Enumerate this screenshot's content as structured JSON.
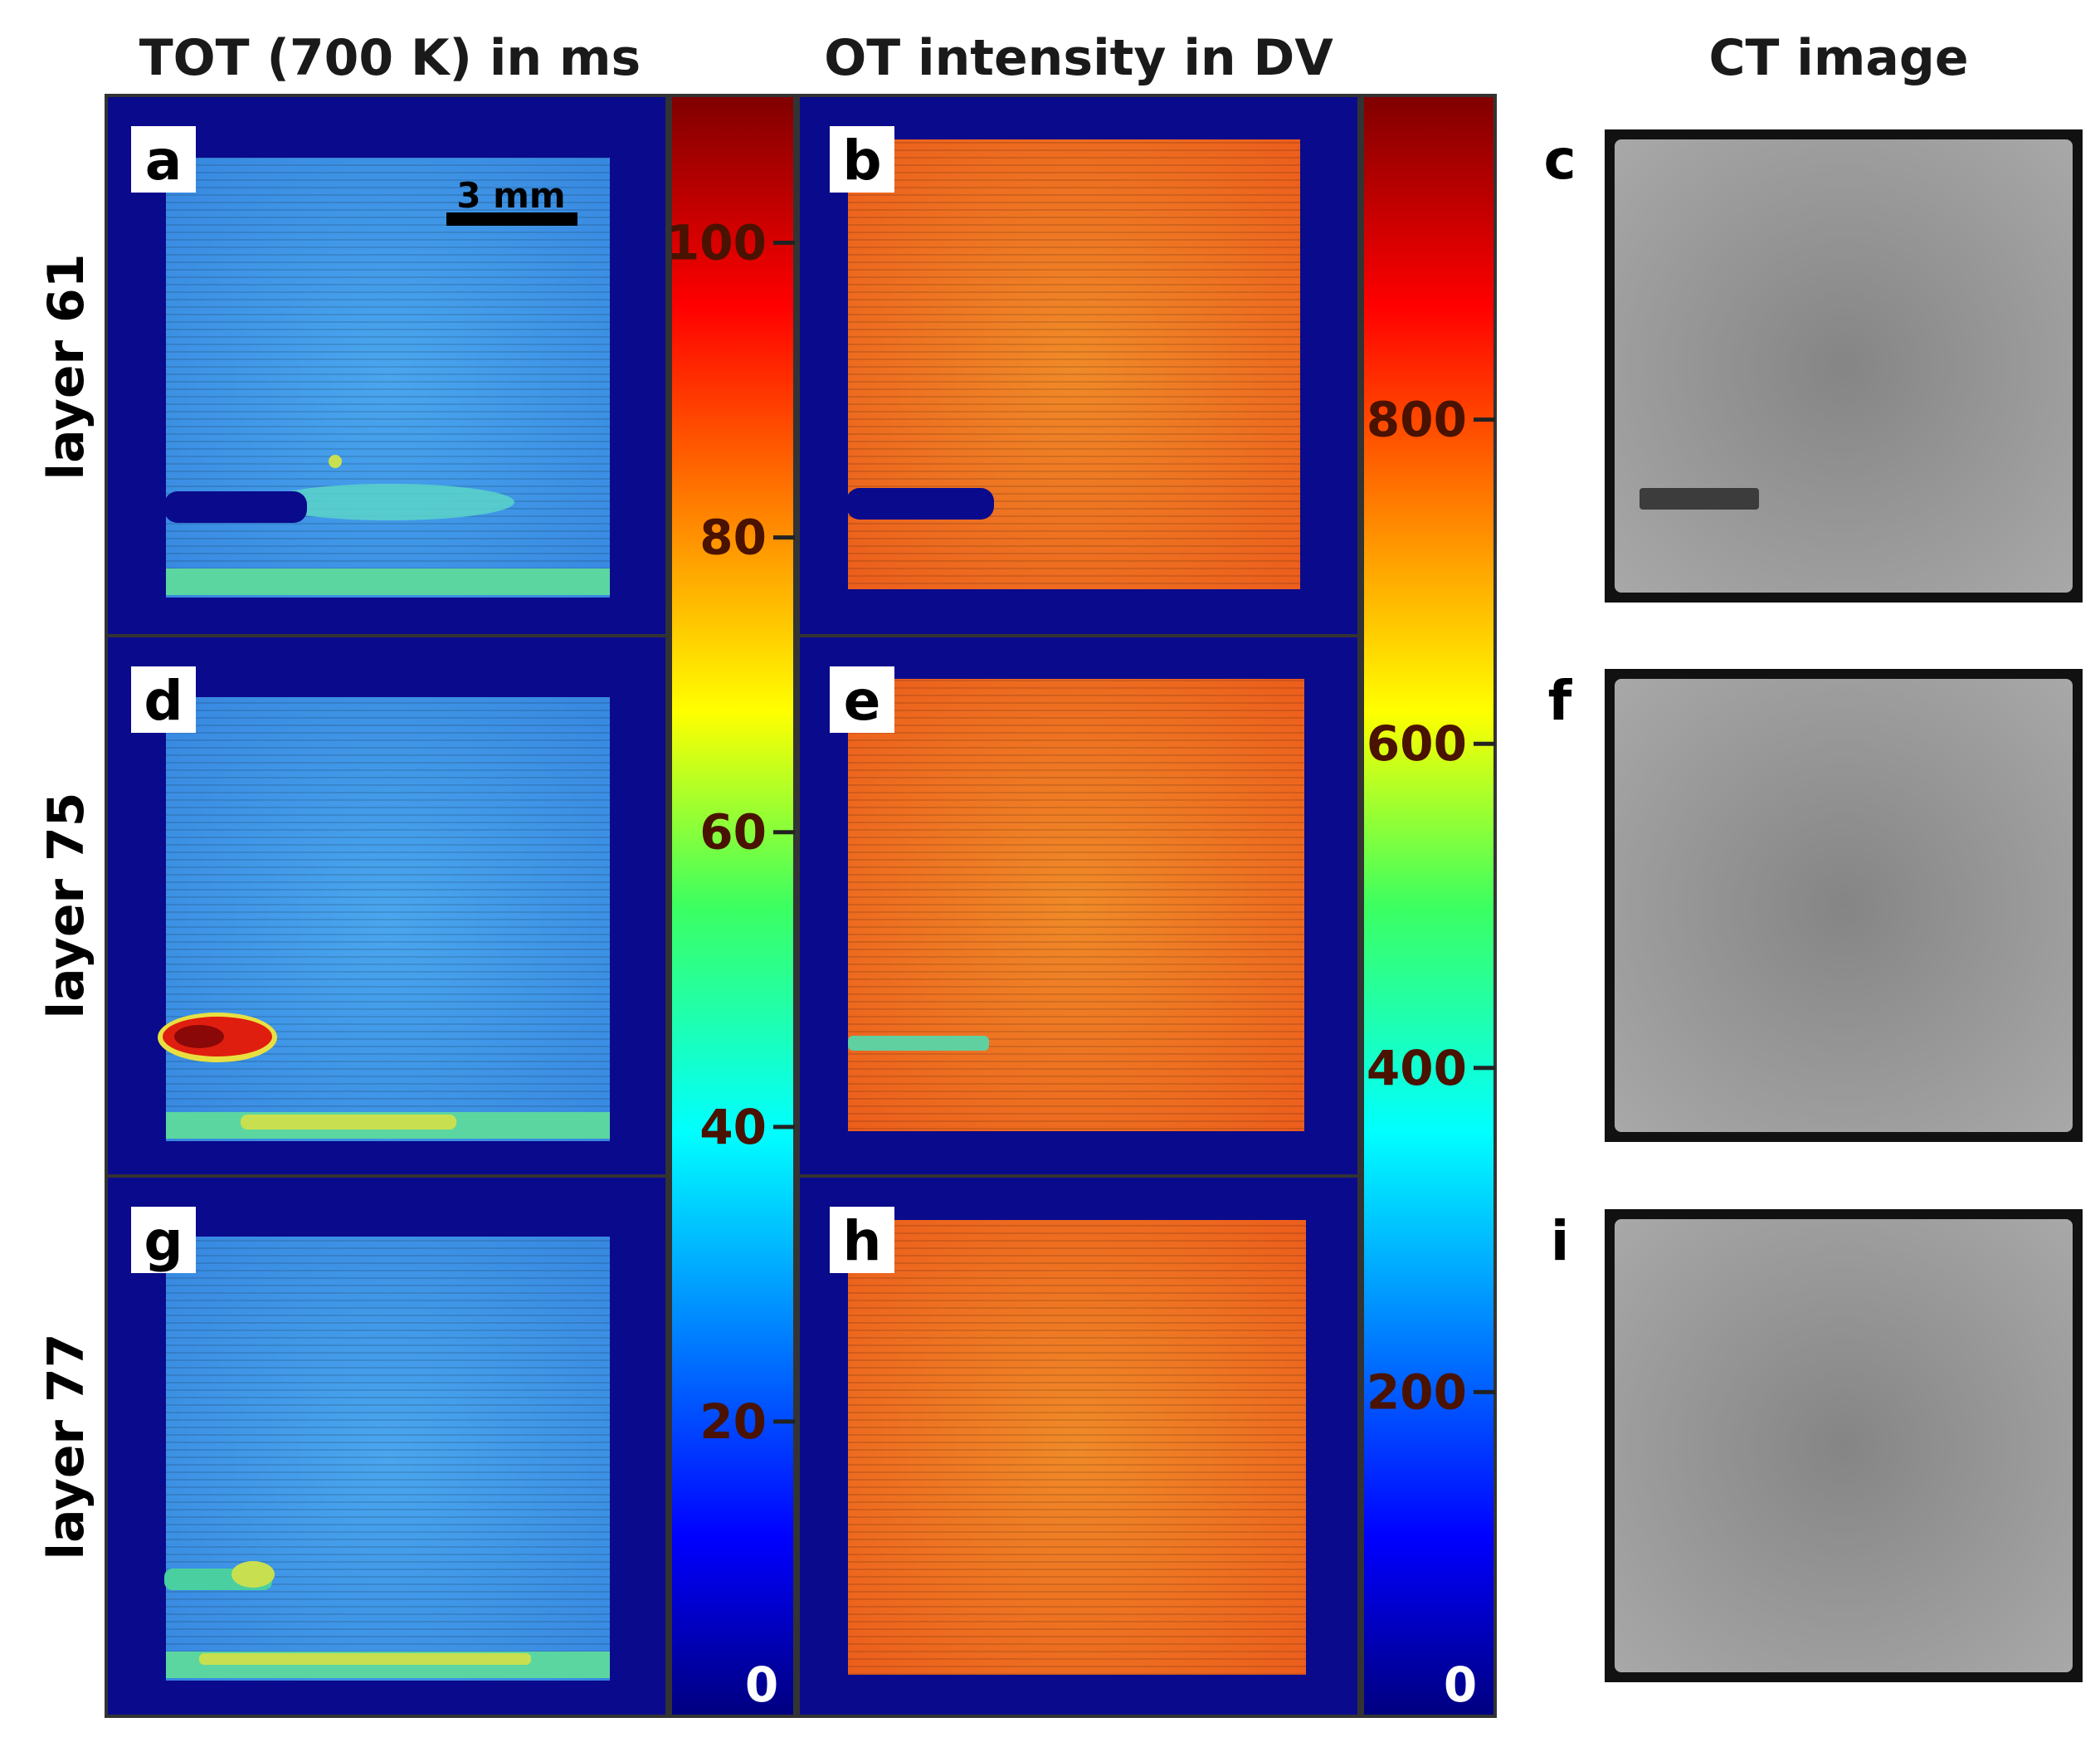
{
  "columns": {
    "tot_title": "TOT (700 K) in ms",
    "ot_title": "OT intensity in DV",
    "ct_title": "CT image"
  },
  "rows": [
    {
      "label": "layer 61"
    },
    {
      "label": "layer 75"
    },
    {
      "label": "layer 77"
    }
  ],
  "panels": {
    "a": "a",
    "b": "b",
    "c": "c",
    "d": "d",
    "e": "e",
    "f": "f",
    "g": "g",
    "h": "h",
    "i": "i"
  },
  "scale_bar": "3 mm",
  "colorbar_tot": {
    "ticks": [
      "100",
      "80",
      "60",
      "40",
      "20"
    ],
    "tick_values": [
      100,
      80,
      60,
      40,
      20
    ],
    "zero": "0",
    "range": [
      0,
      110
    ]
  },
  "colorbar_ot": {
    "ticks": [
      "800",
      "600",
      "400",
      "200"
    ],
    "tick_values": [
      800,
      600,
      400,
      200
    ],
    "zero": "0",
    "range": [
      0,
      1000
    ]
  },
  "colors": {
    "jet_dark_blue": "#0a0a8c",
    "tot_fill": "#3a9ae8",
    "ot_fill": "#f07020",
    "ct_fill": "#9a9a9a",
    "ct_frame": "#111111"
  }
}
